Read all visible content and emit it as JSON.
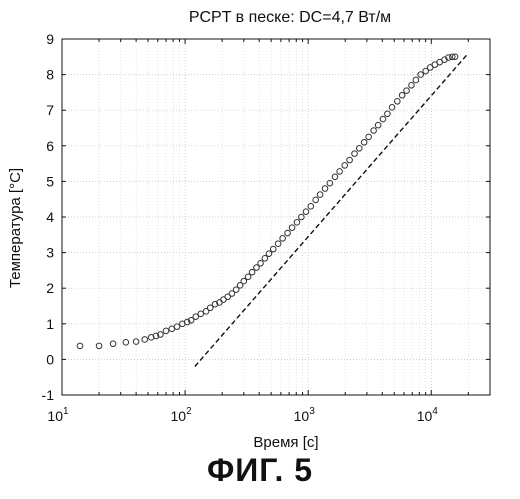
{
  "figure_caption": "ФИГ. 5",
  "chart_data": {
    "type": "scatter",
    "title": "PCPT в песке: DC=4,7 Вт/м",
    "xlabel": "Время [с]",
    "ylabel": "Температура [°C]",
    "xscale": "log",
    "xlim": [
      10,
      30000
    ],
    "ylim": [
      -1,
      9
    ],
    "grid": true,
    "x_ticks": [
      {
        "value": 10,
        "base": "10",
        "exp": "1"
      },
      {
        "value": 100,
        "base": "10",
        "exp": "2"
      },
      {
        "value": 1000,
        "base": "10",
        "exp": "3"
      },
      {
        "value": 10000,
        "base": "10",
        "exp": "4"
      }
    ],
    "y_ticks": [
      -1,
      0,
      1,
      2,
      3,
      4,
      5,
      6,
      7,
      8,
      9
    ],
    "series": [
      {
        "marker": "open-circle",
        "x": [
          14,
          20,
          26,
          33,
          40,
          47,
          53,
          58,
          63,
          70,
          78,
          86,
          95,
          104,
          112,
          122,
          134,
          148,
          160,
          175,
          190,
          205,
          222,
          240,
          260,
          280,
          300,
          325,
          350,
          380,
          410,
          445,
          480,
          520,
          570,
          620,
          680,
          740,
          810,
          880,
          960,
          1050,
          1150,
          1250,
          1370,
          1500,
          1650,
          1800,
          1980,
          2170,
          2380,
          2600,
          2850,
          3100,
          3400,
          3700,
          4050,
          4400,
          4800,
          5300,
          5800,
          6300,
          6900,
          7500,
          8200,
          9000,
          9800,
          10700,
          11700,
          12800,
          13800,
          14800,
          15600
        ],
        "y": [
          0.38,
          0.38,
          0.44,
          0.48,
          0.5,
          0.56,
          0.62,
          0.66,
          0.7,
          0.8,
          0.86,
          0.92,
          1.0,
          1.05,
          1.1,
          1.2,
          1.28,
          1.35,
          1.45,
          1.55,
          1.6,
          1.68,
          1.76,
          1.85,
          1.96,
          2.08,
          2.2,
          2.32,
          2.45,
          2.58,
          2.7,
          2.84,
          2.97,
          3.1,
          3.25,
          3.4,
          3.55,
          3.7,
          3.85,
          4.0,
          4.15,
          4.3,
          4.48,
          4.63,
          4.8,
          4.95,
          5.13,
          5.28,
          5.45,
          5.6,
          5.78,
          5.93,
          6.1,
          6.25,
          6.43,
          6.58,
          6.75,
          6.9,
          7.08,
          7.25,
          7.42,
          7.55,
          7.7,
          7.85,
          8.0,
          8.1,
          8.2,
          8.28,
          8.35,
          8.42,
          8.48,
          8.5,
          8.5
        ]
      },
      {
        "marker": "dashed-line",
        "x": [
          120,
          20000
        ],
        "y": [
          -0.2,
          8.6
        ]
      }
    ]
  }
}
